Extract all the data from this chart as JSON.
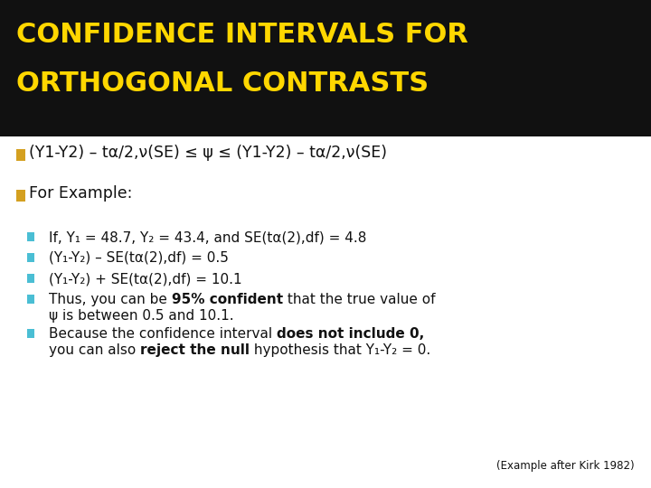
{
  "title_line1": "CONFIDENCE INTERVALS FOR",
  "title_line2": "ORTHOGONAL CONTRASTS",
  "title_bg": "#111111",
  "title_color": "#FFD700",
  "body_bg": "#FFFFFF",
  "bullet_sq_color": "#4ABED4",
  "formula_sq_color": "#D4A020",
  "text_color": "#111111",
  "title_fontsize": 22,
  "body_fontsize": 11.5,
  "formula_text": "(Y1-Y2) – tα/2,ν(SE) ≤ ψ ≤ (Y1-Y2) – tα/2,ν(SE)",
  "for_example_text": "For Example:",
  "citation": "(Example after Kirk 1982)"
}
